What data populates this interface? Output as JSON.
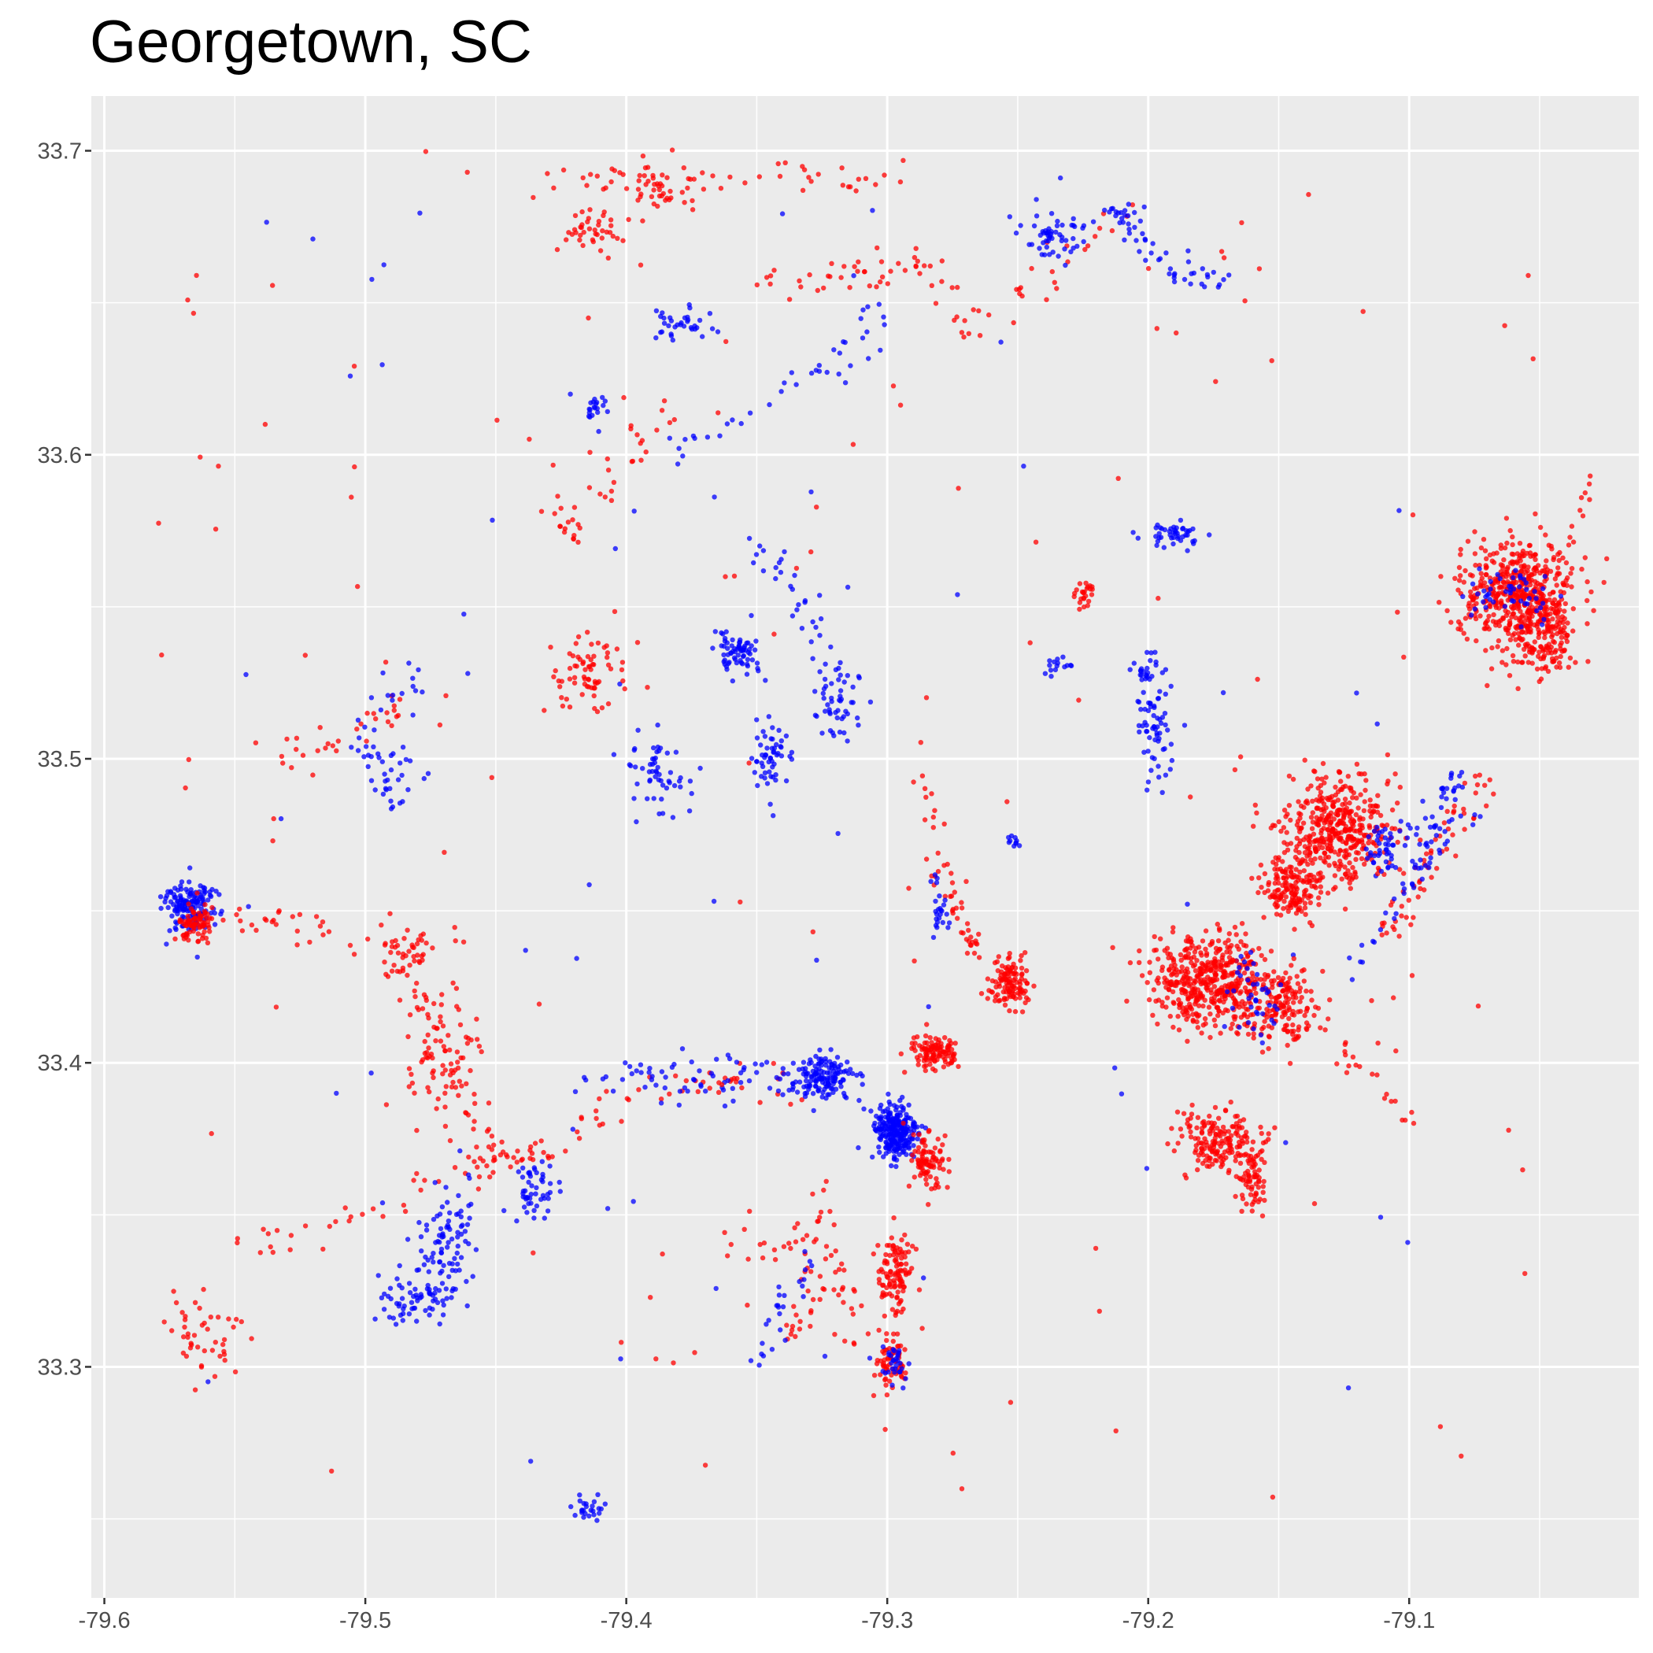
{
  "chart_data": {
    "type": "scatter",
    "title": "Georgetown, SC",
    "xlabel": "",
    "ylabel": "",
    "xlim": [
      -79.605,
      -79.012
    ],
    "ylim": [
      33.224,
      33.718
    ],
    "x_ticks": [
      -79.6,
      -79.5,
      -79.4,
      -79.3,
      -79.2,
      -79.1
    ],
    "x_tick_labels": [
      "-79.6",
      "-79.5",
      "-79.4",
      "-79.3",
      "-79.2",
      "-79.1"
    ],
    "y_ticks": [
      33.3,
      33.4,
      33.5,
      33.6,
      33.7
    ],
    "y_tick_labels": [
      "33.3",
      "33.4",
      "33.5",
      "33.6",
      "33.7"
    ],
    "grid": true,
    "legend": "none",
    "colors": {
      "panel": "#EBEBEB",
      "grid": "#FFFFFF",
      "tick": "#4D4D4D"
    },
    "series": [
      {
        "color": "#FF0000",
        "clusters": [
          {
            "x": -79.059,
            "y": 33.555,
            "rx": 0.02,
            "ry": 0.014,
            "n": 450
          },
          {
            "x": -79.049,
            "y": 33.541,
            "rx": 0.012,
            "ry": 0.014,
            "n": 180
          },
          {
            "x": -79.127,
            "y": 33.477,
            "rx": 0.018,
            "ry": 0.016,
            "n": 420
          },
          {
            "x": -79.145,
            "y": 33.458,
            "rx": 0.01,
            "ry": 0.01,
            "n": 160
          },
          {
            "x": -79.176,
            "y": 33.427,
            "rx": 0.02,
            "ry": 0.013,
            "n": 480
          },
          {
            "x": -79.148,
            "y": 33.42,
            "rx": 0.012,
            "ry": 0.011,
            "n": 160
          },
          {
            "x": -79.172,
            "y": 33.374,
            "rx": 0.016,
            "ry": 0.008,
            "n": 180
          },
          {
            "x": -79.16,
            "y": 33.362,
            "rx": 0.006,
            "ry": 0.01,
            "n": 60
          },
          {
            "x": -79.253,
            "y": 33.426,
            "rx": 0.007,
            "ry": 0.007,
            "n": 120
          },
          {
            "x": -79.282,
            "y": 33.404,
            "rx": 0.008,
            "ry": 0.005,
            "n": 110
          },
          {
            "x": -79.284,
            "y": 33.368,
            "rx": 0.006,
            "ry": 0.009,
            "n": 90
          },
          {
            "x": -79.297,
            "y": 33.33,
            "rx": 0.006,
            "ry": 0.012,
            "n": 110
          },
          {
            "x": -79.298,
            "y": 33.301,
            "rx": 0.005,
            "ry": 0.008,
            "n": 70
          },
          {
            "x": -79.565,
            "y": 33.446,
            "rx": 0.006,
            "ry": 0.006,
            "n": 80
          },
          {
            "x": -79.47,
            "y": 33.403,
            "rx": 0.015,
            "ry": 0.018,
            "n": 70
          },
          {
            "x": -79.485,
            "y": 33.434,
            "rx": 0.008,
            "ry": 0.008,
            "n": 35
          },
          {
            "x": -79.563,
            "y": 33.312,
            "rx": 0.012,
            "ry": 0.012,
            "n": 45
          },
          {
            "x": -79.415,
            "y": 33.528,
            "rx": 0.015,
            "ry": 0.012,
            "n": 70
          },
          {
            "x": -79.412,
            "y": 33.673,
            "rx": 0.012,
            "ry": 0.008,
            "n": 40
          },
          {
            "x": -79.387,
            "y": 33.687,
            "rx": 0.015,
            "ry": 0.007,
            "n": 40
          },
          {
            "x": -79.225,
            "y": 33.554,
            "rx": 0.004,
            "ry": 0.004,
            "n": 25
          },
          {
            "x": -79.215,
            "y": 33.3,
            "rx": 0.0,
            "ry": 0.0,
            "n": 0
          }
        ]
      },
      {
        "color": "#0000FF",
        "clusters": [
          {
            "x": -79.297,
            "y": 33.377,
            "rx": 0.008,
            "ry": 0.009,
            "n": 260
          },
          {
            "x": -79.325,
            "y": 33.395,
            "rx": 0.012,
            "ry": 0.006,
            "n": 150
          },
          {
            "x": -79.568,
            "y": 33.452,
            "rx": 0.009,
            "ry": 0.008,
            "n": 150
          },
          {
            "x": -79.47,
            "y": 33.338,
            "rx": 0.009,
            "ry": 0.02,
            "n": 100
          },
          {
            "x": -79.485,
            "y": 33.322,
            "rx": 0.012,
            "ry": 0.008,
            "n": 50
          },
          {
            "x": -79.435,
            "y": 33.358,
            "rx": 0.008,
            "ry": 0.01,
            "n": 50
          },
          {
            "x": -79.357,
            "y": 33.535,
            "rx": 0.008,
            "ry": 0.008,
            "n": 70
          },
          {
            "x": -79.345,
            "y": 33.5,
            "rx": 0.006,
            "ry": 0.01,
            "n": 55
          },
          {
            "x": -79.32,
            "y": 33.518,
            "rx": 0.008,
            "ry": 0.012,
            "n": 50
          },
          {
            "x": -79.387,
            "y": 33.495,
            "rx": 0.012,
            "ry": 0.012,
            "n": 55
          },
          {
            "x": -79.19,
            "y": 33.573,
            "rx": 0.01,
            "ry": 0.004,
            "n": 45
          },
          {
            "x": -79.197,
            "y": 33.51,
            "rx": 0.007,
            "ry": 0.016,
            "n": 60
          },
          {
            "x": -79.2,
            "y": 33.528,
            "rx": 0.007,
            "ry": 0.008,
            "n": 25
          },
          {
            "x": -79.09,
            "y": 33.476,
            "rx": 0.012,
            "ry": 0.01,
            "n": 35
          },
          {
            "x": -79.11,
            "y": 33.47,
            "rx": 0.006,
            "ry": 0.008,
            "n": 40
          },
          {
            "x": -79.16,
            "y": 33.42,
            "rx": 0.01,
            "ry": 0.015,
            "n": 40
          },
          {
            "x": -79.06,
            "y": 33.555,
            "rx": 0.016,
            "ry": 0.008,
            "n": 50
          },
          {
            "x": -79.237,
            "y": 33.672,
            "rx": 0.012,
            "ry": 0.008,
            "n": 55
          },
          {
            "x": -79.21,
            "y": 33.68,
            "rx": 0.006,
            "ry": 0.003,
            "n": 15
          },
          {
            "x": -79.38,
            "y": 33.643,
            "rx": 0.012,
            "ry": 0.005,
            "n": 35
          },
          {
            "x": -79.412,
            "y": 33.615,
            "rx": 0.004,
            "ry": 0.005,
            "n": 20
          },
          {
            "x": -79.298,
            "y": 33.3,
            "rx": 0.004,
            "ry": 0.007,
            "n": 30
          },
          {
            "x": -79.415,
            "y": 33.253,
            "rx": 0.008,
            "ry": 0.004,
            "n": 25
          },
          {
            "x": -79.49,
            "y": 33.495,
            "rx": 0.01,
            "ry": 0.01,
            "n": 35
          },
          {
            "x": -79.28,
            "y": 33.45,
            "rx": 0.004,
            "ry": 0.01,
            "n": 25
          },
          {
            "x": -79.233,
            "y": 33.53,
            "rx": 0.006,
            "ry": 0.004,
            "n": 15
          },
          {
            "x": -79.252,
            "y": 33.473,
            "rx": 0.003,
            "ry": 0.002,
            "n": 10
          }
        ]
      }
    ],
    "paths": [
      {
        "color": "#FF0000",
        "n": 50,
        "spread": 0.003,
        "points": [
          [
            -79.29,
            33.5
          ],
          [
            -79.28,
            33.47
          ],
          [
            -79.27,
            33.44
          ],
          [
            -79.26,
            33.43
          ]
        ]
      },
      {
        "color": "#FF0000",
        "n": 60,
        "spread": 0.003,
        "points": [
          [
            -79.11,
            33.44
          ],
          [
            -79.09,
            33.47
          ],
          [
            -79.07,
            33.495
          ]
        ]
      },
      {
        "color": "#0000FF",
        "n": 45,
        "spread": 0.002,
        "points": [
          [
            -79.12,
            33.43
          ],
          [
            -79.1,
            33.46
          ],
          [
            -79.085,
            33.49
          ],
          [
            -79.08,
            33.495
          ]
        ]
      },
      {
        "color": "#FF0000",
        "n": 40,
        "spread": 0.003,
        "points": [
          [
            -79.56,
            33.45
          ],
          [
            -79.5,
            33.44
          ],
          [
            -79.46,
            33.44
          ]
        ]
      },
      {
        "color": "#FF0000",
        "n": 50,
        "spread": 0.003,
        "points": [
          [
            -79.48,
            33.43
          ],
          [
            -79.47,
            33.4
          ],
          [
            -79.45,
            33.37
          ],
          [
            -79.43,
            33.37
          ]
        ]
      },
      {
        "color": "#FF0000",
        "n": 45,
        "spread": 0.003,
        "points": [
          [
            -79.55,
            33.34
          ],
          [
            -79.5,
            33.35
          ],
          [
            -79.46,
            33.365
          ],
          [
            -79.44,
            33.37
          ]
        ]
      },
      {
        "color": "#FF0000",
        "n": 45,
        "spread": 0.003,
        "points": [
          [
            -79.43,
            33.37
          ],
          [
            -79.4,
            33.39
          ],
          [
            -79.36,
            33.395
          ],
          [
            -79.33,
            33.39
          ]
        ]
      },
      {
        "color": "#0000FF",
        "n": 35,
        "spread": 0.003,
        "points": [
          [
            -79.42,
            33.39
          ],
          [
            -79.37,
            33.4
          ],
          [
            -79.34,
            33.395
          ]
        ]
      },
      {
        "color": "#FF0000",
        "n": 40,
        "spread": 0.003,
        "points": [
          [
            -79.29,
            33.67
          ],
          [
            -79.27,
            33.64
          ],
          [
            -79.24,
            33.66
          ],
          [
            -79.21,
            33.68
          ]
        ]
      },
      {
        "color": "#0000FF",
        "n": 40,
        "spread": 0.003,
        "points": [
          [
            -79.21,
            33.68
          ],
          [
            -79.19,
            33.66
          ],
          [
            -79.17,
            33.655
          ]
        ]
      },
      {
        "color": "#FF0000",
        "n": 45,
        "spread": 0.003,
        "points": [
          [
            -79.43,
            33.69
          ],
          [
            -79.37,
            33.695
          ],
          [
            -79.32,
            33.69
          ],
          [
            -79.29,
            33.695
          ]
        ]
      },
      {
        "color": "#0000FF",
        "n": 40,
        "spread": 0.003,
        "points": [
          [
            -79.38,
            33.6
          ],
          [
            -79.34,
            33.62
          ],
          [
            -79.32,
            33.63
          ],
          [
            -79.3,
            33.65
          ]
        ]
      },
      {
        "color": "#FF0000",
        "n": 35,
        "spread": 0.003,
        "points": [
          [
            -79.35,
            33.655
          ],
          [
            -79.31,
            33.66
          ],
          [
            -79.29,
            33.66
          ]
        ]
      },
      {
        "color": "#FF0000",
        "n": 40,
        "spread": 0.003,
        "points": [
          [
            -79.43,
            33.59
          ],
          [
            -79.42,
            33.57
          ],
          [
            -79.4,
            33.6
          ],
          [
            -79.38,
            33.62
          ]
        ]
      },
      {
        "color": "#0000FF",
        "n": 30,
        "spread": 0.003,
        "points": [
          [
            -79.35,
            33.57
          ],
          [
            -79.33,
            33.55
          ],
          [
            -79.32,
            33.53
          ]
        ]
      },
      {
        "color": "#FF0000",
        "n": 40,
        "spread": 0.003,
        "points": [
          [
            -79.36,
            33.34
          ],
          [
            -79.33,
            33.34
          ],
          [
            -79.31,
            33.32
          ],
          [
            -79.32,
            33.3
          ]
        ]
      },
      {
        "color": "#FF0000",
        "n": 35,
        "spread": 0.003,
        "points": [
          [
            -79.33,
            33.36
          ],
          [
            -79.32,
            33.33
          ],
          [
            -79.34,
            33.31
          ]
        ]
      },
      {
        "color": "#0000FF",
        "n": 25,
        "spread": 0.003,
        "points": [
          [
            -79.33,
            33.34
          ],
          [
            -79.34,
            33.32
          ],
          [
            -79.35,
            33.3
          ]
        ]
      },
      {
        "color": "#0000FF",
        "n": 25,
        "spread": 0.003,
        "points": [
          [
            -79.4,
            33.4
          ],
          [
            -79.38,
            33.39
          ],
          [
            -79.36,
            33.39
          ]
        ]
      },
      {
        "color": "#FF0000",
        "n": 30,
        "spread": 0.003,
        "points": [
          [
            -79.53,
            33.5
          ],
          [
            -79.5,
            33.51
          ],
          [
            -79.48,
            33.52
          ]
        ]
      },
      {
        "color": "#0000FF",
        "n": 20,
        "spread": 0.003,
        "points": [
          [
            -79.51,
            33.5
          ],
          [
            -79.49,
            33.52
          ],
          [
            -79.48,
            33.53
          ]
        ]
      },
      {
        "color": "#FF0000",
        "n": 20,
        "spread": 0.003,
        "points": [
          [
            -79.1,
            33.38
          ],
          [
            -79.12,
            33.4
          ],
          [
            -79.14,
            33.42
          ]
        ]
      },
      {
        "color": "#FF0000",
        "n": 25,
        "spread": 0.003,
        "points": [
          [
            -79.03,
            33.59
          ],
          [
            -79.04,
            33.57
          ],
          [
            -79.06,
            33.55
          ],
          [
            -79.07,
            33.52
          ]
        ]
      }
    ],
    "scatter_noise": [
      {
        "color": "#FF0000",
        "n": 140,
        "xlim": [
          -79.58,
          -79.05
        ],
        "ylim": [
          33.25,
          33.7
        ]
      },
      {
        "color": "#0000FF",
        "n": 70,
        "xlim": [
          -79.58,
          -79.1
        ],
        "ylim": [
          33.25,
          33.7
        ]
      }
    ]
  }
}
